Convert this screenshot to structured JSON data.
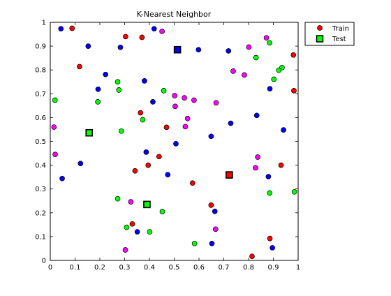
{
  "chart_data": {
    "type": "scatter",
    "title": "K-Nearest Neighbor",
    "xlim": [
      0,
      1
    ],
    "ylim": [
      0,
      1
    ],
    "x_ticks": [
      "0",
      "0.1",
      "0.2",
      "0.3",
      "0.4",
      "0.5",
      "0.6",
      "0.7",
      "0.8",
      "0.9",
      "1"
    ],
    "y_ticks": [
      "0",
      "0.1",
      "0.2",
      "0.3",
      "0.4",
      "0.5",
      "0.6",
      "0.7",
      "0.8",
      "0.9",
      "1"
    ],
    "legend": {
      "placement": "outside-top-right",
      "entries": [
        {
          "label": "Train",
          "marker": "circle",
          "color": "#ff0000"
        },
        {
          "label": "Test",
          "marker": "square",
          "color": "#00ff00"
        }
      ]
    },
    "series": [
      {
        "name": "Train",
        "marker": "circle",
        "points": [
          {
            "x": 0.043,
            "y": 0.973,
            "color": "#0000ff"
          },
          {
            "x": 0.088,
            "y": 0.975,
            "color": "#ff0000"
          },
          {
            "x": 0.118,
            "y": 0.814,
            "color": "#ff0000"
          },
          {
            "x": 0.153,
            "y": 0.9,
            "color": "#0000ff"
          },
          {
            "x": 0.223,
            "y": 0.781,
            "color": "#0000ff"
          },
          {
            "x": 0.193,
            "y": 0.719,
            "color": "#0000ff"
          },
          {
            "x": 0.283,
            "y": 0.895,
            "color": "#0000ff"
          },
          {
            "x": 0.304,
            "y": 0.94,
            "color": "#ff0000"
          },
          {
            "x": 0.37,
            "y": 0.937,
            "color": "#ff0000"
          },
          {
            "x": 0.419,
            "y": 0.973,
            "color": "#0000ff"
          },
          {
            "x": 0.451,
            "y": 0.962,
            "color": "#ff00ff"
          },
          {
            "x": 0.598,
            "y": 0.885,
            "color": "#0000ff"
          },
          {
            "x": 0.719,
            "y": 0.88,
            "color": "#0000ff"
          },
          {
            "x": 0.801,
            "y": 0.896,
            "color": "#ff00ff"
          },
          {
            "x": 0.872,
            "y": 0.935,
            "color": "#ff00ff"
          },
          {
            "x": 0.885,
            "y": 0.914,
            "color": "#00ff00"
          },
          {
            "x": 0.83,
            "y": 0.852,
            "color": "#00ff00"
          },
          {
            "x": 0.981,
            "y": 0.863,
            "color": "#ff0000"
          },
          {
            "x": 0.935,
            "y": 0.81,
            "color": "#00ff00"
          },
          {
            "x": 0.922,
            "y": 0.799,
            "color": "#00ff00"
          },
          {
            "x": 0.738,
            "y": 0.795,
            "color": "#ff00ff"
          },
          {
            "x": 0.783,
            "y": 0.779,
            "color": "#ff00ff"
          },
          {
            "x": 0.902,
            "y": 0.761,
            "color": "#00ff00"
          },
          {
            "x": 0.886,
            "y": 0.721,
            "color": "#0000ff"
          },
          {
            "x": 0.983,
            "y": 0.713,
            "color": "#ff0000"
          },
          {
            "x": 0.019,
            "y": 0.673,
            "color": "#00ff00"
          },
          {
            "x": 0.272,
            "y": 0.75,
            "color": "#00ff00"
          },
          {
            "x": 0.277,
            "y": 0.716,
            "color": "#00ff00"
          },
          {
            "x": 0.192,
            "y": 0.666,
            "color": "#00ff00"
          },
          {
            "x": 0.38,
            "y": 0.754,
            "color": "#0000ff"
          },
          {
            "x": 0.414,
            "y": 0.666,
            "color": "#0000ff"
          },
          {
            "x": 0.458,
            "y": 0.713,
            "color": "#00ff00"
          },
          {
            "x": 0.502,
            "y": 0.692,
            "color": "#ff00ff"
          },
          {
            "x": 0.541,
            "y": 0.683,
            "color": "#ff00ff"
          },
          {
            "x": 0.58,
            "y": 0.673,
            "color": "#ff00ff"
          },
          {
            "x": 0.504,
            "y": 0.647,
            "color": "#ff00ff"
          },
          {
            "x": 0.669,
            "y": 0.662,
            "color": "#ff00ff"
          },
          {
            "x": 0.364,
            "y": 0.62,
            "color": "#ff0000"
          },
          {
            "x": 0.373,
            "y": 0.591,
            "color": "#00ff00"
          },
          {
            "x": 0.469,
            "y": 0.559,
            "color": "#ff0000"
          },
          {
            "x": 0.554,
            "y": 0.596,
            "color": "#ff00ff"
          },
          {
            "x": 0.545,
            "y": 0.562,
            "color": "#ff00ff"
          },
          {
            "x": 0.833,
            "y": 0.609,
            "color": "#0000ff"
          },
          {
            "x": 0.728,
            "y": 0.576,
            "color": "#0000ff"
          },
          {
            "x": 0.941,
            "y": 0.548,
            "color": "#0000ff"
          },
          {
            "x": 0.015,
            "y": 0.56,
            "color": "#ff00ff"
          },
          {
            "x": 0.287,
            "y": 0.543,
            "color": "#00ff00"
          },
          {
            "x": 0.649,
            "y": 0.521,
            "color": "#0000ff"
          },
          {
            "x": 0.507,
            "y": 0.49,
            "color": "#0000ff"
          },
          {
            "x": 0.02,
            "y": 0.445,
            "color": "#ff00ff"
          },
          {
            "x": 0.387,
            "y": 0.455,
            "color": "#0000ff"
          },
          {
            "x": 0.439,
            "y": 0.436,
            "color": "#ff0000"
          },
          {
            "x": 0.122,
            "y": 0.407,
            "color": "#0000ff"
          },
          {
            "x": 0.395,
            "y": 0.4,
            "color": "#ff0000"
          },
          {
            "x": 0.342,
            "y": 0.376,
            "color": "#ff0000"
          },
          {
            "x": 0.837,
            "y": 0.434,
            "color": "#ff00ff"
          },
          {
            "x": 0.828,
            "y": 0.389,
            "color": "#ff00ff"
          },
          {
            "x": 0.931,
            "y": 0.4,
            "color": "#ff0000"
          },
          {
            "x": 0.048,
            "y": 0.344,
            "color": "#0000ff"
          },
          {
            "x": 0.474,
            "y": 0.36,
            "color": "#0000ff"
          },
          {
            "x": 0.574,
            "y": 0.325,
            "color": "#ff0000"
          },
          {
            "x": 0.88,
            "y": 0.352,
            "color": "#0000ff"
          },
          {
            "x": 0.272,
            "y": 0.259,
            "color": "#00ff00"
          },
          {
            "x": 0.325,
            "y": 0.246,
            "color": "#ff00ff"
          },
          {
            "x": 0.649,
            "y": 0.232,
            "color": "#ff0000"
          },
          {
            "x": 0.664,
            "y": 0.206,
            "color": "#0000ff"
          },
          {
            "x": 0.452,
            "y": 0.205,
            "color": "#00ff00"
          },
          {
            "x": 0.885,
            "y": 0.283,
            "color": "#00ff00"
          },
          {
            "x": 0.985,
            "y": 0.288,
            "color": "#00ff00"
          },
          {
            "x": 0.331,
            "y": 0.153,
            "color": "#ff0000"
          },
          {
            "x": 0.308,
            "y": 0.139,
            "color": "#00ff00"
          },
          {
            "x": 0.351,
            "y": 0.12,
            "color": "#0000ff"
          },
          {
            "x": 0.401,
            "y": 0.12,
            "color": "#00ff00"
          },
          {
            "x": 0.667,
            "y": 0.131,
            "color": "#ff00ff"
          },
          {
            "x": 0.886,
            "y": 0.092,
            "color": "#ff0000"
          },
          {
            "x": 0.582,
            "y": 0.071,
            "color": "#00ff00"
          },
          {
            "x": 0.652,
            "y": 0.071,
            "color": "#0000ff"
          },
          {
            "x": 0.896,
            "y": 0.053,
            "color": "#0000ff"
          },
          {
            "x": 0.303,
            "y": 0.044,
            "color": "#ff00ff"
          },
          {
            "x": 0.814,
            "y": 0.017,
            "color": "#ff0000"
          }
        ]
      },
      {
        "name": "Test",
        "marker": "square",
        "points": [
          {
            "x": 0.513,
            "y": 0.885,
            "color": "#0000ff"
          },
          {
            "x": 0.157,
            "y": 0.536,
            "color": "#00ff00"
          },
          {
            "x": 0.722,
            "y": 0.359,
            "color": "#ff0000"
          },
          {
            "x": 0.39,
            "y": 0.235,
            "color": "#00ff00"
          }
        ]
      }
    ]
  }
}
